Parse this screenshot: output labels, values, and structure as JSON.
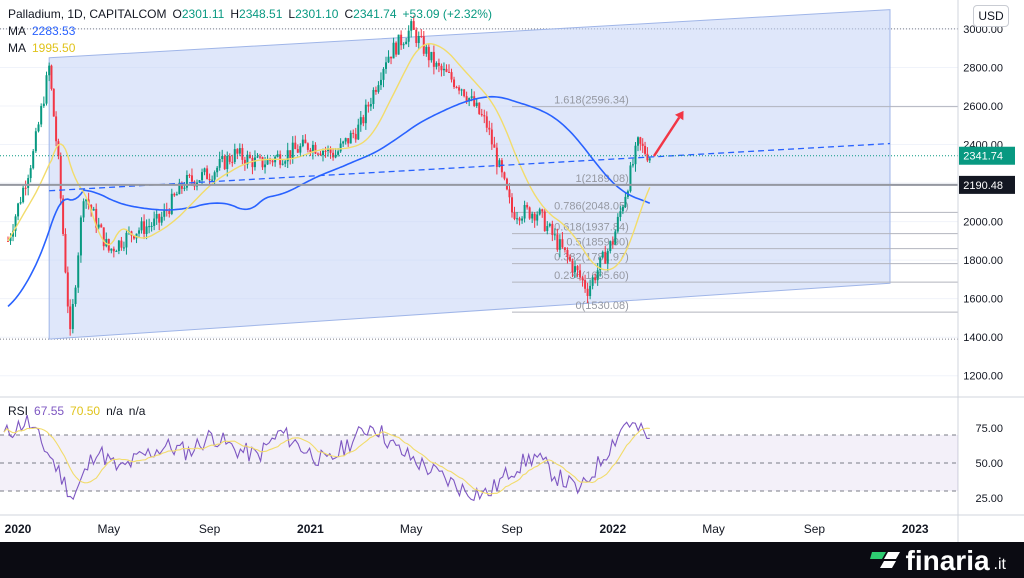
{
  "legend": {
    "symbol": "Palladium, 1D, CAPITALCOM",
    "o_label": "O",
    "o_val": "2301.11",
    "h_label": "H",
    "h_val": "2348.51",
    "l_label": "L",
    "l_val": "2301.10",
    "c_label": "C",
    "c_val": "2341.74",
    "change": "+53.09 (+2.32%)",
    "ma1_label": "MA",
    "ma1_val": "2283.53",
    "ma2_label": "MA",
    "ma2_val": "1995.50"
  },
  "currency": "USD",
  "rsi_legend": {
    "label": "RSI",
    "v1": "67.55",
    "v2": "70.50",
    "v3": "n/a",
    "v4": "n/a"
  },
  "brand": {
    "name": "finaria",
    "tld": ".it"
  },
  "colors": {
    "up": "#089981",
    "down": "#f23645",
    "ma_long": "#2962ff",
    "ma_short": "#f2dc6b",
    "rsi": "#7e57c2",
    "channel": "#c5d4f5",
    "arrow": "#f23645"
  },
  "chart_data": [
    {
      "type": "candlestick",
      "title": "Palladium, 1D, CAPITALCOM",
      "x_ticks": [
        "2020",
        "May",
        "Sep",
        "2021",
        "May",
        "Sep",
        "2022",
        "May",
        "Sep",
        "2023"
      ],
      "y_ticks": [
        "1200.00",
        "1400.00",
        "1600.00",
        "1800.00",
        "2000.00",
        "2200.00",
        "2400.00",
        "2600.00",
        "2800.00",
        "3000.00"
      ],
      "ylim": [
        1100,
        3150
      ],
      "price_labels": {
        "last": "2341.74",
        "level": "2190.48"
      },
      "fibonacci": [
        {
          "label": "1.618(2596.34)",
          "value": 2596.34
        },
        {
          "label": "1(2189.08)",
          "value": 2189.08
        },
        {
          "label": "0.786(2048.05)",
          "value": 2048.05
        },
        {
          "label": "0.618(1937.84)",
          "value": 1937.84
        },
        {
          "label": "0.5(1859.90)",
          "value": 1859.9
        },
        {
          "label": "0.382(1781.97)",
          "value": 1781.97
        },
        {
          "label": "0.236(1685.60)",
          "value": 1685.6
        },
        {
          "label": "0(1530.08)",
          "value": 1530.08
        }
      ],
      "price_path": [
        [
          "2020-01",
          1900
        ],
        [
          "2020-02",
          2350
        ],
        [
          "2020-02-20",
          2800
        ],
        [
          "2020-03",
          2300
        ],
        [
          "2020-03-15",
          1400
        ],
        [
          "2020-04",
          2150
        ],
        [
          "2020-05",
          1850
        ],
        [
          "2020-06",
          1950
        ],
        [
          "2020-07",
          2000
        ],
        [
          "2020-08",
          2200
        ],
        [
          "2020-09",
          2250
        ],
        [
          "2020-10",
          2350
        ],
        [
          "2020-11",
          2300
        ],
        [
          "2020-12",
          2350
        ],
        [
          "2021-01",
          2400
        ],
        [
          "2021-02",
          2350
        ],
        [
          "2021-03",
          2500
        ],
        [
          "2021-04",
          2850
        ],
        [
          "2021-05",
          3000
        ],
        [
          "2021-06",
          2800
        ],
        [
          "2021-07",
          2700
        ],
        [
          "2021-08",
          2500
        ],
        [
          "2021-09",
          2050
        ],
        [
          "2021-10",
          2050
        ],
        [
          "2021-11",
          1850
        ],
        [
          "2021-12",
          1650
        ],
        [
          "2022-01",
          1900
        ],
        [
          "2022-02",
          2400
        ],
        [
          "2022-02-15",
          2341.74
        ]
      ],
      "series": [
        {
          "name": "MA",
          "last": 2283.53
        },
        {
          "name": "MA",
          "last": 1995.5
        }
      ]
    },
    {
      "type": "line",
      "title": "RSI",
      "y_ticks": [
        "25.00",
        "50.00",
        "75.00"
      ],
      "ylim": [
        15,
        95
      ],
      "levels": [
        30,
        50,
        70
      ],
      "values": [
        70,
        80,
        55,
        25,
        60,
        45,
        55,
        62,
        58,
        70,
        60,
        55,
        72,
        60,
        50,
        65,
        78,
        60,
        50,
        40,
        30,
        28,
        45,
        55,
        40,
        30,
        55,
        80,
        67.55
      ],
      "series": [
        {
          "name": "RSI",
          "last": 67.55
        },
        {
          "name": "MA",
          "last": 70.5
        }
      ]
    }
  ]
}
